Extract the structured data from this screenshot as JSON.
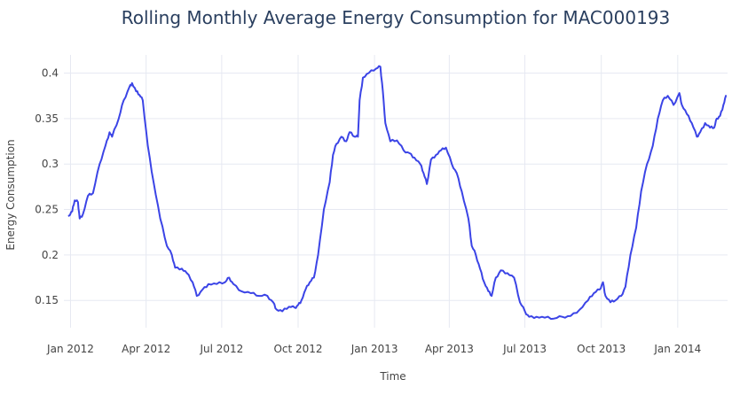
{
  "chart_data": {
    "type": "line",
    "title": "Rolling Monthly Average Energy Consumption for MAC000193",
    "xlabel": "Time",
    "ylabel": "Energy Consumption",
    "grid": true,
    "x_range": [
      "2011-12-24",
      "2014-03-02"
    ],
    "ylim": [
      0.12,
      0.42
    ],
    "x_ticks": [
      {
        "label": "Jan 2012",
        "date": "2012-01-01"
      },
      {
        "label": "Apr 2012",
        "date": "2012-04-01"
      },
      {
        "label": "Jul 2012",
        "date": "2012-07-01"
      },
      {
        "label": "Oct 2012",
        "date": "2012-10-01"
      },
      {
        "label": "Jan 2013",
        "date": "2013-01-01"
      },
      {
        "label": "Apr 2013",
        "date": "2013-04-01"
      },
      {
        "label": "Jul 2013",
        "date": "2013-07-01"
      },
      {
        "label": "Oct 2013",
        "date": "2013-10-01"
      },
      {
        "label": "Jan 2014",
        "date": "2014-01-01"
      }
    ],
    "y_ticks": [
      {
        "label": "0.15",
        "value": 0.15
      },
      {
        "label": "0.2",
        "value": 0.2
      },
      {
        "label": "0.25",
        "value": 0.25
      },
      {
        "label": "0.3",
        "value": 0.3
      },
      {
        "label": "0.35",
        "value": 0.35
      },
      {
        "label": "0.4",
        "value": 0.4
      }
    ],
    "series": [
      {
        "color": "#3b44e6",
        "points": [
          [
            "2011-12-30",
            0.243
          ],
          [
            "2012-01-03",
            0.248
          ],
          [
            "2012-01-06",
            0.26
          ],
          [
            "2012-01-10",
            0.258
          ],
          [
            "2012-01-12",
            0.24
          ],
          [
            "2012-01-16",
            0.245
          ],
          [
            "2012-01-22",
            0.265
          ],
          [
            "2012-01-28",
            0.268
          ],
          [
            "2012-02-05",
            0.3
          ],
          [
            "2012-02-12",
            0.32
          ],
          [
            "2012-02-17",
            0.335
          ],
          [
            "2012-02-20",
            0.33
          ],
          [
            "2012-02-28",
            0.35
          ],
          [
            "2012-03-05",
            0.37
          ],
          [
            "2012-03-12",
            0.385
          ],
          [
            "2012-03-15",
            0.389
          ],
          [
            "2012-03-20",
            0.38
          ],
          [
            "2012-03-24",
            0.376
          ],
          [
            "2012-03-28",
            0.37
          ],
          [
            "2012-04-03",
            0.32
          ],
          [
            "2012-04-10",
            0.28
          ],
          [
            "2012-04-18",
            0.24
          ],
          [
            "2012-04-26",
            0.21
          ],
          [
            "2012-05-02",
            0.2
          ],
          [
            "2012-05-06",
            0.186
          ],
          [
            "2012-05-14",
            0.185
          ],
          [
            "2012-05-20",
            0.18
          ],
          [
            "2012-05-27",
            0.17
          ],
          [
            "2012-06-01",
            0.155
          ],
          [
            "2012-06-08",
            0.162
          ],
          [
            "2012-06-15",
            0.168
          ],
          [
            "2012-06-25",
            0.168
          ],
          [
            "2012-07-05",
            0.17
          ],
          [
            "2012-07-10",
            0.175
          ],
          [
            "2012-07-15",
            0.168
          ],
          [
            "2012-07-25",
            0.16
          ],
          [
            "2012-08-05",
            0.158
          ],
          [
            "2012-08-15",
            0.155
          ],
          [
            "2012-08-25",
            0.155
          ],
          [
            "2012-09-01",
            0.148
          ],
          [
            "2012-09-05",
            0.14
          ],
          [
            "2012-09-12",
            0.138
          ],
          [
            "2012-09-20",
            0.143
          ],
          [
            "2012-09-27",
            0.142
          ],
          [
            "2012-10-01",
            0.145
          ],
          [
            "2012-10-05",
            0.15
          ],
          [
            "2012-10-10",
            0.162
          ],
          [
            "2012-10-15",
            0.17
          ],
          [
            "2012-10-20",
            0.175
          ],
          [
            "2012-10-25",
            0.2
          ],
          [
            "2012-11-01",
            0.25
          ],
          [
            "2012-11-08",
            0.28
          ],
          [
            "2012-11-12",
            0.31
          ],
          [
            "2012-11-16",
            0.322
          ],
          [
            "2012-11-22",
            0.33
          ],
          [
            "2012-11-28",
            0.325
          ],
          [
            "2012-12-02",
            0.335
          ],
          [
            "2012-12-08",
            0.33
          ],
          [
            "2012-12-12",
            0.33
          ],
          [
            "2012-12-14",
            0.37
          ],
          [
            "2012-12-18",
            0.395
          ],
          [
            "2012-12-25",
            0.4
          ],
          [
            "2013-01-03",
            0.405
          ],
          [
            "2013-01-08",
            0.407
          ],
          [
            "2013-01-11",
            0.38
          ],
          [
            "2013-01-14",
            0.345
          ],
          [
            "2013-01-20",
            0.325
          ],
          [
            "2013-01-28",
            0.326
          ],
          [
            "2013-02-05",
            0.315
          ],
          [
            "2013-02-12",
            0.312
          ],
          [
            "2013-02-18",
            0.307
          ],
          [
            "2013-02-25",
            0.3
          ],
          [
            "2013-03-01",
            0.29
          ],
          [
            "2013-03-05",
            0.278
          ],
          [
            "2013-03-10",
            0.305
          ],
          [
            "2013-03-16",
            0.31
          ],
          [
            "2013-03-22",
            0.315
          ],
          [
            "2013-03-28",
            0.318
          ],
          [
            "2013-04-04",
            0.3
          ],
          [
            "2013-04-10",
            0.29
          ],
          [
            "2013-04-16",
            0.27
          ],
          [
            "2013-04-24",
            0.24
          ],
          [
            "2013-04-28",
            0.21
          ],
          [
            "2013-05-03",
            0.2
          ],
          [
            "2013-05-08",
            0.185
          ],
          [
            "2013-05-13",
            0.17
          ],
          [
            "2013-05-18",
            0.16
          ],
          [
            "2013-05-22",
            0.155
          ],
          [
            "2013-05-27",
            0.175
          ],
          [
            "2013-06-02",
            0.183
          ],
          [
            "2013-06-10",
            0.18
          ],
          [
            "2013-06-18",
            0.175
          ],
          [
            "2013-06-25",
            0.148
          ],
          [
            "2013-07-01",
            0.138
          ],
          [
            "2013-07-06",
            0.132
          ],
          [
            "2013-07-15",
            0.132
          ],
          [
            "2013-07-25",
            0.131
          ],
          [
            "2013-08-05",
            0.13
          ],
          [
            "2013-08-15",
            0.132
          ],
          [
            "2013-08-25",
            0.133
          ],
          [
            "2013-09-05",
            0.14
          ],
          [
            "2013-09-15",
            0.15
          ],
          [
            "2013-09-22",
            0.158
          ],
          [
            "2013-09-29",
            0.162
          ],
          [
            "2013-10-03",
            0.17
          ],
          [
            "2013-10-06",
            0.155
          ],
          [
            "2013-10-12",
            0.148
          ],
          [
            "2013-10-18",
            0.15
          ],
          [
            "2013-10-25",
            0.155
          ],
          [
            "2013-10-30",
            0.165
          ],
          [
            "2013-11-05",
            0.2
          ],
          [
            "2013-11-12",
            0.23
          ],
          [
            "2013-11-18",
            0.27
          ],
          [
            "2013-11-25",
            0.3
          ],
          [
            "2013-12-02",
            0.32
          ],
          [
            "2013-12-08",
            0.35
          ],
          [
            "2013-12-14",
            0.37
          ],
          [
            "2013-12-20",
            0.375
          ],
          [
            "2013-12-27",
            0.365
          ],
          [
            "2014-01-03",
            0.378
          ],
          [
            "2014-01-06",
            0.365
          ],
          [
            "2014-01-12",
            0.355
          ],
          [
            "2014-01-18",
            0.345
          ],
          [
            "2014-01-24",
            0.33
          ],
          [
            "2014-01-28",
            0.335
          ],
          [
            "2014-02-03",
            0.345
          ],
          [
            "2014-02-09",
            0.34
          ],
          [
            "2014-02-14",
            0.34
          ],
          [
            "2014-02-17",
            0.35
          ],
          [
            "2014-02-21",
            0.353
          ],
          [
            "2014-02-25",
            0.365
          ],
          [
            "2014-02-28",
            0.375
          ]
        ]
      }
    ]
  }
}
